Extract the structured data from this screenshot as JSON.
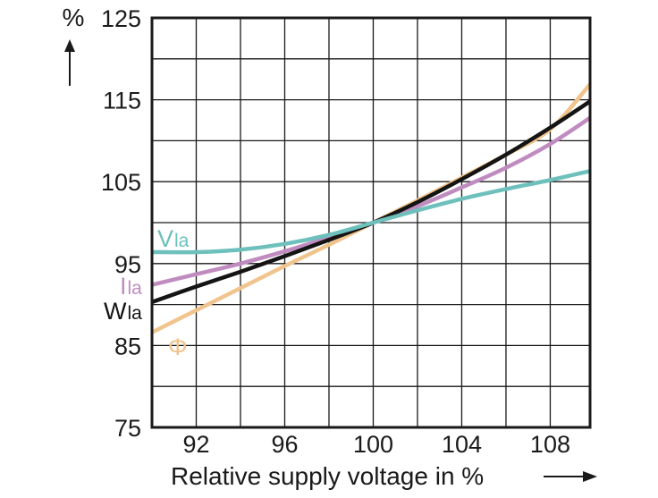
{
  "chart_data": {
    "type": "line",
    "xlabel": "Relative supply voltage in %",
    "ylabel": "%",
    "xlim": [
      90,
      109.8
    ],
    "ylim": [
      75,
      125
    ],
    "x_ticks": [
      92,
      96,
      100,
      104,
      108
    ],
    "y_ticks": [
      75,
      85,
      95,
      105,
      115,
      125
    ],
    "x_grid": [
      90,
      92,
      94,
      96,
      98,
      100,
      102,
      104,
      106,
      108,
      109.8
    ],
    "y_grid": [
      75,
      80,
      85,
      90,
      95,
      100,
      105,
      110,
      115,
      120,
      125
    ],
    "grid": true,
    "series": [
      {
        "name": "Φ",
        "color": "#f0c48c",
        "label_main": "Φ",
        "label_sub": "",
        "x": [
          90,
          92,
          94,
          96,
          98,
          100,
          102,
          104,
          106,
          108,
          109.8
        ],
        "y": [
          86.6,
          89.3,
          92.0,
          94.7,
          97.3,
          100.0,
          102.7,
          105.5,
          108.3,
          111.4,
          116.9
        ]
      },
      {
        "name": "Ila",
        "color": "#c08cc0",
        "label_main": "I",
        "label_sub": "la",
        "x": [
          90,
          92,
          94,
          96,
          98,
          100,
          102,
          104,
          106,
          108,
          109.8
        ],
        "y": [
          92.4,
          93.7,
          95.0,
          96.5,
          98.2,
          100.0,
          102.0,
          104.3,
          106.7,
          109.6,
          112.8
        ]
      },
      {
        "name": "Wla",
        "color": "#141414",
        "label_main": "W",
        "label_sub": "la",
        "x": [
          90,
          92,
          94,
          96,
          98,
          100,
          102,
          104,
          106,
          108,
          109.8
        ],
        "y": [
          90.3,
          92.2,
          94.0,
          95.9,
          97.9,
          100.0,
          102.5,
          105.3,
          108.3,
          111.6,
          114.8
        ]
      },
      {
        "name": "Vla",
        "color": "#6ec0bc",
        "label_main": "V",
        "label_sub": "la",
        "x": [
          90,
          92,
          94,
          96,
          98,
          100,
          102,
          104,
          106,
          108,
          109.8
        ],
        "y": [
          96.4,
          96.4,
          96.7,
          97.4,
          98.5,
          100.0,
          101.5,
          102.9,
          104.1,
          105.2,
          106.3
        ]
      }
    ]
  }
}
